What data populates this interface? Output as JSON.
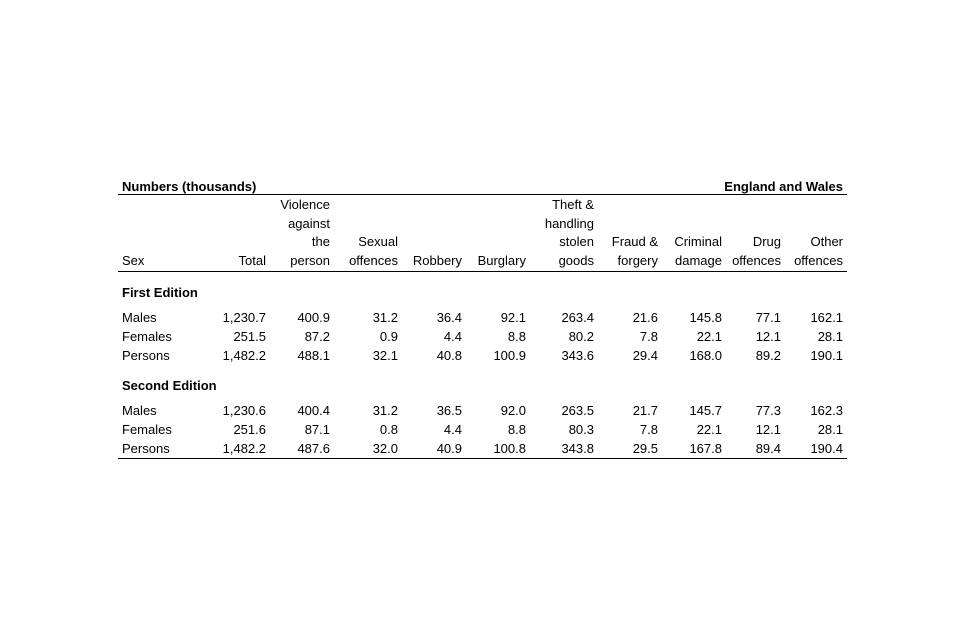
{
  "table": {
    "units_label": "Numbers (thousands)",
    "region_label": "England and Wales",
    "columns": [
      "Sex",
      "Total",
      "Violence\nagainst\nthe\nperson",
      "Sexual\noffences",
      "Robbery",
      "Burglary",
      "Theft &\nhandling\nstolen\ngoods",
      "Fraud &\nforgery",
      "Criminal\ndamage",
      "Drug\noffences",
      "Other\noffences"
    ],
    "sections": [
      {
        "title": "First Edition",
        "rows": [
          {
            "label": "Males",
            "values": [
              "1,230.7",
              "400.9",
              "31.2",
              "36.4",
              "92.1",
              "263.4",
              "21.6",
              "145.8",
              "77.1",
              "162.1"
            ]
          },
          {
            "label": "Females",
            "values": [
              "251.5",
              "87.2",
              "0.9",
              "4.4",
              "8.8",
              "80.2",
              "7.8",
              "22.1",
              "12.1",
              "28.1"
            ]
          },
          {
            "label": "Persons",
            "values": [
              "1,482.2",
              "488.1",
              "32.1",
              "40.8",
              "100.9",
              "343.6",
              "29.4",
              "168.0",
              "89.2",
              "190.1"
            ]
          }
        ]
      },
      {
        "title": "Second Edition",
        "rows": [
          {
            "label": "Males",
            "values": [
              "1,230.6",
              "400.4",
              "31.2",
              "36.5",
              "92.0",
              "263.5",
              "21.7",
              "145.7",
              "77.3",
              "162.3"
            ]
          },
          {
            "label": "Females",
            "values": [
              "251.6",
              "87.1",
              "0.8",
              "4.4",
              "8.8",
              "80.3",
              "7.8",
              "22.1",
              "12.1",
              "28.1"
            ]
          },
          {
            "label": "Persons",
            "values": [
              "1,482.2",
              "487.6",
              "32.0",
              "40.9",
              "100.8",
              "343.8",
              "29.5",
              "167.8",
              "89.4",
              "190.4"
            ]
          }
        ]
      }
    ]
  }
}
